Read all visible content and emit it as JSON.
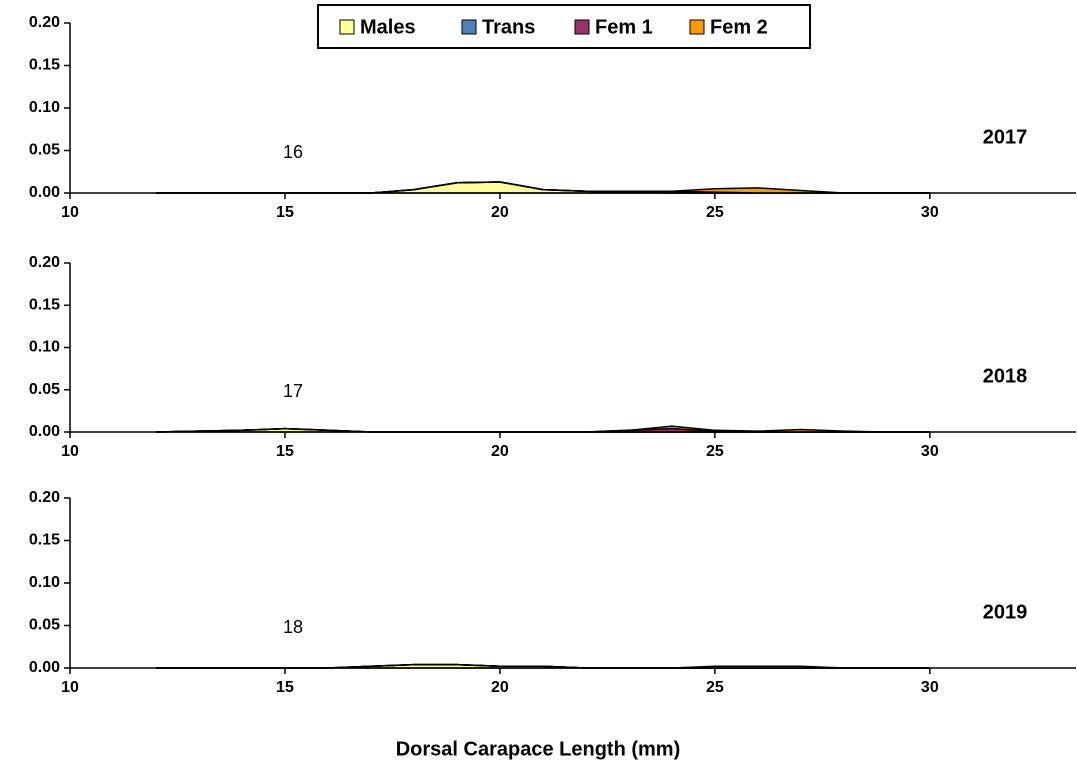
{
  "chart_data": {
    "type": "area",
    "stacked": true,
    "xlabel": "Dorsal Carapace Length (mm)",
    "x": [
      12,
      13,
      14,
      15,
      16,
      17,
      18,
      19,
      20,
      21,
      22,
      23,
      24,
      25,
      26,
      27,
      28,
      29,
      30
    ],
    "xlim": [
      10,
      33.4
    ],
    "xticks": [
      10,
      15,
      20,
      25,
      30
    ],
    "ylim": [
      0,
      0.2
    ],
    "yticks": [
      {
        "value": 0,
        "label": "0.00"
      },
      {
        "value": 0.05,
        "label": "0.05"
      },
      {
        "value": 0.1,
        "label": "0.10"
      },
      {
        "value": 0.15,
        "label": "0.15"
      },
      {
        "value": 0.2,
        "label": "0.20"
      }
    ],
    "series": [
      {
        "name": "Males",
        "color": "#ffff99"
      },
      {
        "name": "Trans",
        "color": "#4f81bd"
      },
      {
        "name": "Fem 1",
        "color": "#993366"
      },
      {
        "name": "Fem 2",
        "color": "#ff9900"
      }
    ],
    "panels": [
      {
        "label": "2017",
        "annotation": "16",
        "series": [
          {
            "values": [
              0,
              0,
              0,
              0,
              0,
              0,
              0.004,
              0.012,
              0.013,
              0.004,
              0.002,
              0.001,
              0,
              0,
              0,
              0,
              0,
              0,
              0
            ]
          },
          {
            "values": [
              0,
              0,
              0,
              0,
              0,
              0,
              0,
              0,
              0,
              0,
              0,
              0,
              0,
              0,
              0,
              0,
              0,
              0,
              0
            ]
          },
          {
            "values": [
              0,
              0,
              0,
              0,
              0,
              0,
              0,
              0,
              0,
              0,
              0,
              0.001,
              0.002,
              0.001,
              0,
              0,
              0,
              0,
              0
            ]
          },
          {
            "values": [
              0,
              0,
              0,
              0,
              0,
              0,
              0,
              0,
              0,
              0,
              0,
              0,
              0,
              0.004,
              0.006,
              0.003,
              0,
              0,
              0
            ]
          }
        ]
      },
      {
        "label": "2018",
        "annotation": "17",
        "series": [
          {
            "values": [
              0,
              0.001,
              0.002,
              0.004,
              0.002,
              0,
              0,
              0,
              0,
              0,
              0,
              0,
              0,
              0,
              0,
              0,
              0,
              0,
              0
            ]
          },
          {
            "values": [
              0,
              0,
              0,
              0,
              0,
              0,
              0,
              0,
              0,
              0,
              0,
              0,
              0,
              0,
              0,
              0,
              0,
              0,
              0
            ]
          },
          {
            "values": [
              0,
              0,
              0,
              0,
              0,
              0,
              0,
              0,
              0,
              0,
              0,
              0.002,
              0.004,
              0.001,
              0,
              0,
              0,
              0,
              0
            ]
          },
          {
            "values": [
              0,
              0,
              0,
              0,
              0,
              0,
              0,
              0,
              0,
              0,
              0,
              0,
              0.003,
              0.001,
              0.001,
              0.003,
              0.001,
              0,
              0
            ]
          }
        ]
      },
      {
        "label": "2019",
        "annotation": "18",
        "series": [
          {
            "values": [
              0,
              0,
              0,
              0,
              0,
              0.002,
              0.004,
              0.004,
              0.002,
              0.002,
              0,
              0,
              0,
              0,
              0,
              0,
              0,
              0,
              0
            ]
          },
          {
            "values": [
              0,
              0,
              0,
              0,
              0,
              0,
              0,
              0,
              0,
              0,
              0,
              0,
              0,
              0,
              0,
              0,
              0,
              0,
              0
            ]
          },
          {
            "values": [
              0,
              0,
              0,
              0,
              0,
              0,
              0,
              0,
              0,
              0,
              0,
              0,
              0,
              0,
              0,
              0,
              0,
              0,
              0
            ]
          },
          {
            "values": [
              0,
              0,
              0,
              0,
              0,
              0,
              0,
              0,
              0,
              0,
              0,
              0,
              0,
              0.002,
              0.002,
              0.002,
              0,
              0,
              0
            ]
          }
        ]
      }
    ]
  }
}
